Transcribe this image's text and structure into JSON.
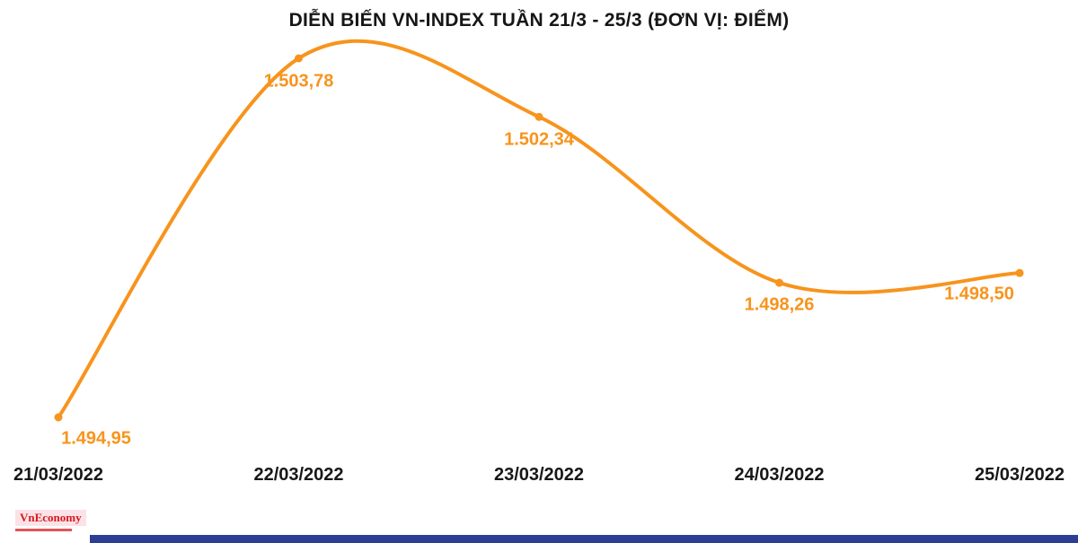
{
  "chart_data": {
    "type": "line",
    "title": "DIỄN BIẾN VN-INDEX TUẦN 21/3 - 25/3 (ĐƠN VỊ: ĐIỂM)",
    "series_name": "VN-Index",
    "categories": [
      "21/03/2022",
      "22/03/2022",
      "23/03/2022",
      "24/03/2022",
      "25/03/2022"
    ],
    "values": [
      1494.95,
      1503.78,
      1502.34,
      1498.26,
      1498.5
    ],
    "value_labels": [
      "1.494,95",
      "1.503,78",
      "1.502,34",
      "1.498,26",
      "1.498,50"
    ],
    "xlabel": "",
    "ylabel": "Điểm",
    "ylim": [
      1494.95,
      1503.78
    ],
    "grid": false,
    "legend": false,
    "line_color": "#F7941D",
    "marker_color": "#F7941D",
    "label_color": "#F7941D",
    "axis_label_color": "#181818",
    "title_color": "#161616"
  },
  "footer": {
    "logo_text": "VnEconomy",
    "logo_color": "#D71920",
    "logo_bg": "#FBE2E6",
    "bar_color": "#2C3E94"
  }
}
